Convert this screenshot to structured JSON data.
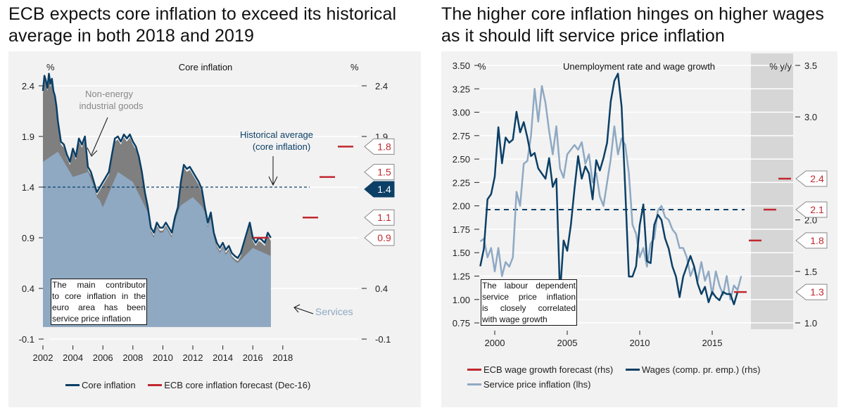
{
  "titles": {
    "left": "ECB expects core inflation to exceed its historical average in both 2018 and 2019",
    "right": "The higher core inflation hinges on higher wages as it should lift service price inflation"
  },
  "colors": {
    "core": "#0b3f66",
    "forecast": "#c0282f",
    "services": "#8fa9c3",
    "negi": "#7f7f7f",
    "panel": "#f2f2f2",
    "forecast_shade": "#d6d6d6",
    "services_text": "#8fa9c3",
    "annotation_blue": "#0b3f66"
  },
  "chart_data": [
    {
      "type": "area",
      "title": "Core inflation",
      "ylabel_left": "%",
      "ylabel_right": "%",
      "yticks": [
        2.4,
        1.9,
        1.4,
        0.9,
        0.4,
        -0.1
      ],
      "ytick_labels": [
        "2.4",
        "1.9",
        "1.4",
        "0.9",
        "0.4",
        "-0.1"
      ],
      "ylim": [
        -0.1,
        2.55
      ],
      "xticks": [
        2002,
        2004,
        2006,
        2008,
        2010,
        2012,
        2014,
        2016,
        2018
      ],
      "xlim": [
        2002,
        2020
      ],
      "grid": true,
      "series": [
        {
          "name": "Core inflation",
          "kind": "line",
          "x": [
            2002.0,
            2002.1,
            2002.2,
            2002.3,
            2002.4,
            2002.5,
            2002.6,
            2002.7,
            2002.8,
            2002.9,
            2003.0,
            2003.2,
            2003.4,
            2003.6,
            2003.8,
            2004.0,
            2004.2,
            2004.4,
            2004.6,
            2004.8,
            2005.0,
            2005.2,
            2005.4,
            2005.6,
            2005.8,
            2006.0,
            2006.2,
            2006.4,
            2006.6,
            2006.8,
            2007.0,
            2007.2,
            2007.4,
            2007.6,
            2007.8,
            2008.0,
            2008.2,
            2008.4,
            2008.6,
            2008.8,
            2009.0,
            2009.2,
            2009.4,
            2009.6,
            2009.8,
            2010.0,
            2010.2,
            2010.4,
            2010.6,
            2010.8,
            2011.0,
            2011.2,
            2011.4,
            2011.6,
            2011.8,
            2012.0,
            2012.2,
            2012.4,
            2012.6,
            2012.8,
            2013.0,
            2013.2,
            2013.4,
            2013.6,
            2013.8,
            2014.0,
            2014.2,
            2014.4,
            2014.6,
            2014.8,
            2015.0,
            2015.2,
            2015.4,
            2015.6,
            2015.8,
            2016.0,
            2016.2,
            2016.4,
            2016.6,
            2016.8,
            2017.0,
            2017.2
          ],
          "values": [
            2.35,
            2.5,
            2.45,
            2.38,
            2.52,
            2.42,
            2.47,
            2.35,
            2.3,
            2.2,
            2.05,
            1.85,
            1.82,
            1.72,
            1.65,
            1.78,
            1.7,
            1.88,
            1.82,
            1.9,
            1.6,
            1.55,
            1.45,
            1.35,
            1.4,
            1.45,
            1.5,
            1.55,
            1.72,
            1.88,
            1.9,
            1.85,
            1.92,
            1.88,
            1.92,
            1.85,
            1.8,
            1.7,
            1.55,
            1.35,
            1.2,
            1.0,
            0.95,
            1.05,
            1.0,
            1.0,
            1.05,
            1.0,
            0.95,
            1.1,
            1.2,
            1.45,
            1.62,
            1.58,
            1.6,
            1.55,
            1.5,
            1.45,
            1.38,
            1.2,
            1.05,
            1.15,
            0.95,
            0.85,
            0.8,
            0.85,
            0.78,
            0.82,
            0.75,
            0.72,
            0.7,
            0.75,
            0.85,
            0.95,
            1.05,
            0.9,
            0.85,
            0.9,
            0.88,
            0.85,
            0.95,
            0.9
          ]
        },
        {
          "name": "Non-energy industrial goods (contribution)",
          "kind": "area",
          "annotation": "Non-energy industrial goods"
        },
        {
          "name": "Services (contribution)",
          "kind": "area",
          "annotation": "Services",
          "x": [
            2002.0,
            2003.0,
            2004.0,
            2005.0,
            2006.0,
            2007.0,
            2008.0,
            2009.0,
            2010.0,
            2011.0,
            2012.0,
            2013.0,
            2014.0,
            2015.0,
            2016.0,
            2017.2
          ],
          "values": [
            1.65,
            1.75,
            1.5,
            1.55,
            1.2,
            1.55,
            1.45,
            1.15,
            0.95,
            1.2,
            1.3,
            1.15,
            0.85,
            0.65,
            0.8,
            0.72
          ]
        },
        {
          "name": "ECB core inflation forecast (Dec-16)",
          "kind": "forecast",
          "points": [
            {
              "year": 2016,
              "value": 0.9
            },
            {
              "year": 2017,
              "value": 1.1
            },
            {
              "year": 2018,
              "value": 1.5
            },
            {
              "year": 2019,
              "value": 1.8
            }
          ]
        }
      ],
      "historical_average": {
        "value": 1.4,
        "label": "Historical average (core inflation)"
      },
      "callouts": [
        {
          "value": 1.8,
          "label": "1.8",
          "style": "forecast"
        },
        {
          "value": 1.5,
          "label": "1.5",
          "style": "forecast"
        },
        {
          "value": 1.4,
          "label": "1.4",
          "style": "average"
        },
        {
          "value": 1.1,
          "label": "1.1",
          "style": "forecast"
        },
        {
          "value": 0.9,
          "label": "0.9",
          "style": "forecast"
        }
      ],
      "note": "The main contributor to core inflation in the euro area has been service price inflation",
      "legend": [
        {
          "label": "Core inflation",
          "color_key": "core"
        },
        {
          "label": "ECB core inflation forecast (Dec-16)",
          "color_key": "forecast"
        }
      ],
      "legend_placement": "bottom"
    },
    {
      "type": "line",
      "title": "Unemployment rate and wage growth",
      "ylabel_left": "%",
      "ylabel_right": "% y/y",
      "yticks_left": [
        3.5,
        3.25,
        3.0,
        2.75,
        2.5,
        2.25,
        2.0,
        1.75,
        1.5,
        1.25,
        1.0,
        0.75
      ],
      "ytick_labels_left": [
        "3.50",
        "3.25",
        "3.00",
        "2.75",
        "2.50",
        "2.25",
        "2.00",
        "1.75",
        "1.50",
        "1.25",
        "1.00",
        "0.75"
      ],
      "ylim_left": [
        0.75,
        3.5
      ],
      "yticks_right": [
        3.5,
        3.0,
        2.5,
        2.0,
        1.5,
        1.0
      ],
      "ytick_labels_right": [
        "3.5",
        "3.0",
        "2.0",
        "1.5",
        "1.0"
      ],
      "ytick_labels_right_full": [
        "3.5",
        "3.0",
        "",
        "2.0",
        "1.5",
        "1.0"
      ],
      "ylim_right": [
        1.0,
        3.5
      ],
      "xticks": [
        2000,
        2005,
        2010,
        2015
      ],
      "xlim": [
        1998.8,
        2019.8
      ],
      "forecast_shade": [
        2017.9,
        2019.6
      ],
      "grid": true,
      "series": [
        {
          "name": "Wages (comp. pr. emp.) (rhs)",
          "axis": "rhs",
          "x": [
            1999.0,
            1999.25,
            1999.5,
            1999.75,
            2000.0,
            2000.25,
            2000.5,
            2000.75,
            2001.0,
            2001.25,
            2001.5,
            2001.75,
            2002.0,
            2002.25,
            2002.5,
            2002.75,
            2003.0,
            2003.25,
            2003.5,
            2003.75,
            2004.0,
            2004.25,
            2004.5,
            2004.75,
            2005.0,
            2005.25,
            2005.5,
            2005.75,
            2006.0,
            2006.25,
            2006.5,
            2006.75,
            2007.0,
            2007.25,
            2007.5,
            2007.75,
            2008.0,
            2008.25,
            2008.5,
            2008.75,
            2009.0,
            2009.25,
            2009.5,
            2009.75,
            2010.0,
            2010.25,
            2010.5,
            2010.75,
            2011.0,
            2011.25,
            2011.5,
            2011.75,
            2012.0,
            2012.25,
            2012.5,
            2012.75,
            2013.0,
            2013.25,
            2013.5,
            2013.75,
            2014.0,
            2014.25,
            2014.5,
            2014.75,
            2015.0,
            2015.25,
            2015.5,
            2015.75,
            2016.0,
            2016.25,
            2016.5,
            2016.75
          ],
          "values": [
            1.55,
            1.72,
            2.2,
            2.25,
            2.42,
            2.9,
            2.55,
            2.8,
            2.75,
            2.78,
            3.05,
            2.85,
            2.95,
            2.8,
            2.62,
            2.65,
            2.5,
            2.45,
            2.4,
            2.6,
            2.32,
            2.4,
            1.28,
            1.8,
            1.7,
            1.95,
            2.3,
            2.62,
            2.4,
            2.52,
            2.45,
            2.2,
            2.58,
            2.48,
            2.6,
            2.75,
            3.15,
            3.35,
            3.42,
            3.1,
            2.3,
            1.45,
            1.45,
            1.55,
            1.95,
            2.15,
            1.6,
            1.58,
            1.95,
            2.05,
            2.0,
            1.82,
            1.72,
            1.55,
            1.45,
            1.25,
            1.45,
            1.55,
            1.65,
            1.55,
            1.38,
            1.28,
            1.35,
            1.2,
            1.3,
            1.25,
            1.22,
            1.3,
            1.28,
            1.28,
            1.18,
            1.3
          ]
        },
        {
          "name": "Service price inflation (lhs)",
          "axis": "lhs",
          "x": [
            1999.0,
            1999.25,
            1999.5,
            1999.75,
            2000.0,
            2000.25,
            2000.5,
            2000.75,
            2001.0,
            2001.25,
            2001.5,
            2001.75,
            2002.0,
            2002.25,
            2002.5,
            2002.75,
            2003.0,
            2003.25,
            2003.5,
            2003.75,
            2004.0,
            2004.25,
            2004.5,
            2004.75,
            2005.0,
            2005.25,
            2005.5,
            2005.75,
            2006.0,
            2006.25,
            2006.5,
            2006.75,
            2007.0,
            2007.25,
            2007.5,
            2007.75,
            2008.0,
            2008.25,
            2008.5,
            2008.75,
            2009.0,
            2009.25,
            2009.5,
            2009.75,
            2010.0,
            2010.25,
            2010.5,
            2010.75,
            2011.0,
            2011.25,
            2011.5,
            2011.75,
            2012.0,
            2012.25,
            2012.5,
            2012.75,
            2013.0,
            2013.25,
            2013.5,
            2013.75,
            2014.0,
            2014.25,
            2014.5,
            2014.75,
            2015.0,
            2015.25,
            2015.5,
            2015.75,
            2016.0,
            2016.25,
            2016.5,
            2016.75,
            2017.0
          ],
          "values": [
            1.62,
            1.65,
            1.45,
            1.55,
            1.3,
            1.55,
            1.25,
            1.4,
            1.35,
            1.45,
            2.15,
            2.0,
            2.45,
            2.48,
            2.75,
            3.25,
            2.9,
            3.28,
            3.1,
            2.8,
            2.55,
            2.85,
            2.4,
            2.3,
            2.55,
            2.6,
            2.65,
            2.6,
            2.68,
            2.45,
            2.55,
            2.25,
            2.35,
            2.1,
            2.0,
            2.25,
            2.5,
            2.85,
            2.55,
            2.72,
            2.65,
            2.35,
            1.8,
            1.7,
            1.45,
            1.55,
            1.35,
            1.6,
            1.65,
            1.95,
            2.0,
            1.88,
            1.85,
            1.75,
            1.7,
            1.55,
            1.55,
            1.45,
            1.25,
            1.35,
            1.2,
            1.4,
            1.2,
            1.3,
            1.05,
            1.3,
            1.15,
            1.05,
            1.25,
            1.0,
            1.15,
            1.1,
            1.25
          ]
        },
        {
          "name": "ECB wage growth forecast (rhs)",
          "axis": "rhs",
          "kind": "forecast",
          "points": [
            {
              "year": 2016,
              "value": 1.3
            },
            {
              "year": 2017,
              "value": 1.8
            },
            {
              "year": 2018,
              "value": 2.1
            },
            {
              "year": 2019,
              "value": 2.4
            }
          ]
        }
      ],
      "historical_average": {
        "axis": "lhs",
        "value": 1.96
      },
      "callouts": [
        {
          "value": 2.4,
          "label": "2.4"
        },
        {
          "value": 2.1,
          "label": "2.1"
        },
        {
          "value": 1.8,
          "label": "1.8"
        },
        {
          "value": 1.3,
          "label": "1.3"
        }
      ],
      "note": "The labour dependent service price inflation is closely correlated with wage growth",
      "legend": [
        {
          "label": "ECB wage growth forecast (rhs)",
          "color_key": "forecast"
        },
        {
          "label": "Wages (comp. pr. emp.) (rhs)",
          "color_key": "core"
        },
        {
          "label": "Service price inflation (lhs)",
          "color_key": "services"
        }
      ],
      "legend_placement": "bottom"
    }
  ],
  "note_lines": {
    "left": [
      "The main contributor",
      "to core inflation in the",
      "euro area has been",
      "service price inflation"
    ],
    "right": [
      "The labour dependent",
      "service price inflation",
      "is closely correlated",
      "with wage growth"
    ]
  },
  "annotations": {
    "negi_line1": "Non-energy",
    "negi_line2": "industrial goods",
    "avg_line1": "Historical average",
    "avg_line2": "(core inflation)",
    "services": "Services"
  }
}
